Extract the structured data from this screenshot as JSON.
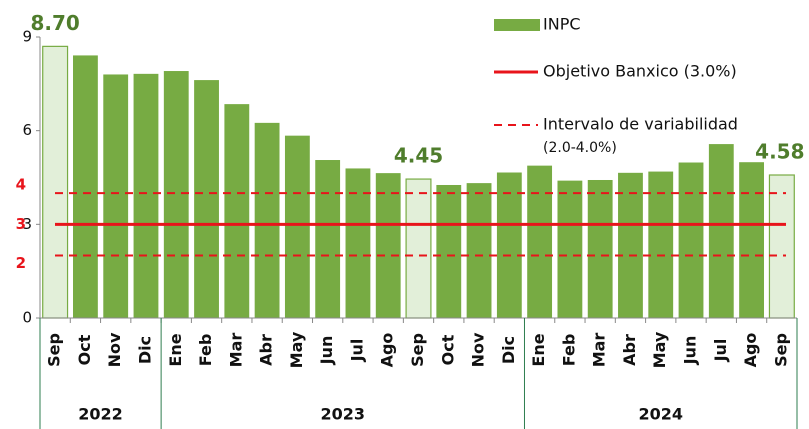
{
  "chart_data": {
    "type": "bar",
    "categories": [
      "Sep",
      "Oct",
      "Nov",
      "Dic",
      "Ene",
      "Feb",
      "Mar",
      "Abr",
      "May",
      "Jun",
      "Jul",
      "Ago",
      "Sep",
      "Oct",
      "Nov",
      "Dic",
      "Ene",
      "Feb",
      "Mar",
      "Abr",
      "May",
      "Jun",
      "Jul",
      "Ago",
      "Sep"
    ],
    "groups": [
      {
        "label": "2022",
        "count": 4
      },
      {
        "label": "2023",
        "count": 12
      },
      {
        "label": "2024",
        "count": 9
      }
    ],
    "series": [
      {
        "name": "INPC",
        "color": "#77ab43",
        "values": [
          8.7,
          8.41,
          7.8,
          7.82,
          7.91,
          7.62,
          6.85,
          6.25,
          5.84,
          5.06,
          4.79,
          4.64,
          4.45,
          4.26,
          4.32,
          4.66,
          4.88,
          4.4,
          4.42,
          4.65,
          4.69,
          4.98,
          5.57,
          4.99,
          4.58
        ],
        "value_labels": [
          "8.70",
          null,
          null,
          null,
          null,
          null,
          null,
          null,
          null,
          null,
          null,
          null,
          "4.45",
          null,
          null,
          null,
          null,
          null,
          null,
          null,
          null,
          null,
          null,
          null,
          "4.58"
        ],
        "colors": [
          "#e2efd9",
          "#77ab43",
          "#77ab43",
          "#77ab43",
          "#77ab43",
          "#77ab43",
          "#77ab43",
          "#77ab43",
          "#77ab43",
          "#77ab43",
          "#77ab43",
          "#77ab43",
          "#e2efd9",
          "#77ab43",
          "#77ab43",
          "#77ab43",
          "#77ab43",
          "#77ab43",
          "#77ab43",
          "#77ab43",
          "#77ab43",
          "#77ab43",
          "#77ab43",
          "#77ab43",
          "#e2efd9"
        ]
      }
    ],
    "reference_lines": [
      {
        "name": [
          "Objetivo Banxico (3.0%)"
        ],
        "values": [
          3
        ],
        "color": "#e8141b",
        "style": "solid"
      },
      {
        "name": [
          "Intervalo de variabilidad",
          "(2.0-4.0%)"
        ],
        "values": [
          4,
          2
        ],
        "color": "#e8141b",
        "style": "dashed"
      }
    ],
    "ylim": [
      0,
      9
    ],
    "yticks": [
      0,
      3,
      6,
      9
    ]
  }
}
